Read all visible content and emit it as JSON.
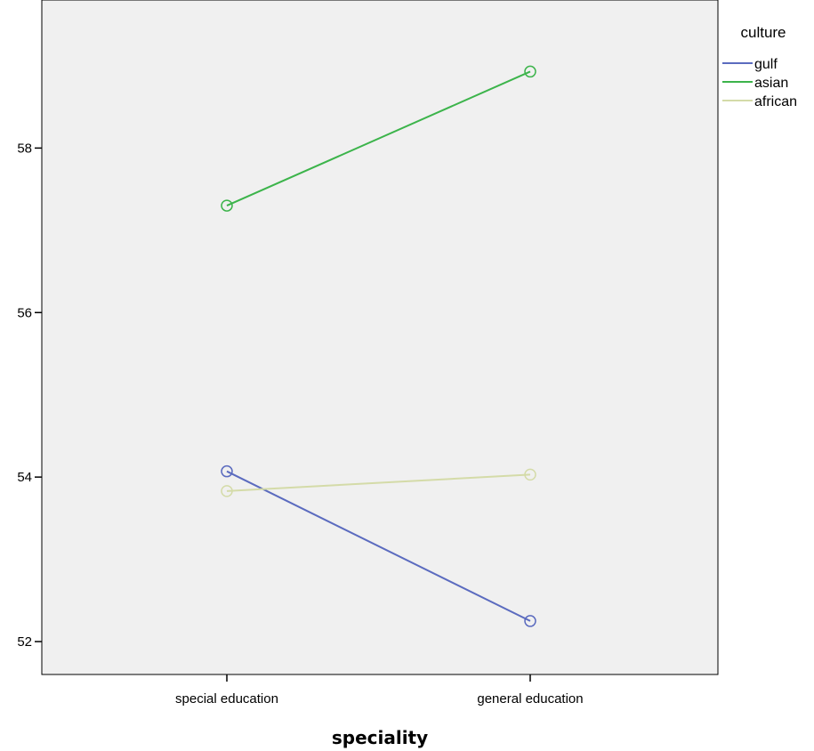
{
  "chart_data": {
    "type": "line",
    "title": "",
    "xlabel": "speciality",
    "ylabel": "",
    "categories": [
      "special education",
      "general education"
    ],
    "ylim": [
      51.6,
      59.8
    ],
    "yticks": [
      52,
      54,
      56,
      58
    ],
    "grid": false,
    "markers": "open-circle",
    "legend": {
      "title": "culture",
      "position": "top-right outside plot"
    },
    "series": [
      {
        "name": "gulf",
        "values": [
          54.07,
          52.25
        ],
        "color": "#5b6bbf"
      },
      {
        "name": "asian",
        "values": [
          57.3,
          58.93
        ],
        "color": "#3cb44b"
      },
      {
        "name": "african",
        "values": [
          53.83,
          54.03
        ],
        "color": "#d4dba8"
      }
    ],
    "plot_background": "#f0f0f0"
  }
}
